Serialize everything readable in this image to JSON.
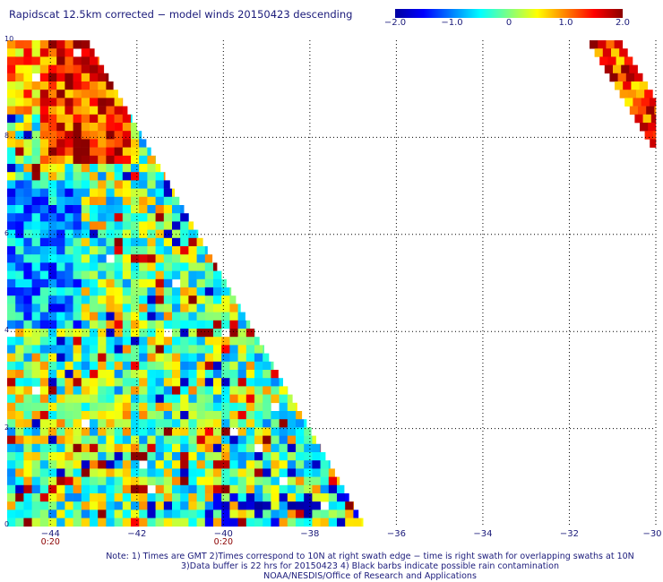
{
  "title": "Rapidscat 12.5km corrected − model winds 20150423 descending",
  "colorbar": {
    "labels": [
      "−2.0",
      "−1.0",
      "0",
      "1.0",
      "2.0"
    ],
    "label_values": [
      -2.0,
      -1.0,
      0,
      1.0,
      2.0
    ],
    "range": [
      -2.0,
      2.0
    ],
    "colors": [
      "#0000a0",
      "#0000ff",
      "#0080ff",
      "#00ffff",
      "#80ff80",
      "#ffff00",
      "#ff8000",
      "#ff0000",
      "#8b0000"
    ]
  },
  "axes": {
    "lon_labels": [
      "−44",
      "−42",
      "−40",
      "−38",
      "−36",
      "−34",
      "−32",
      "−30"
    ],
    "lon_values": [
      -44,
      -42,
      -40,
      -38,
      -36,
      -34,
      -32,
      -30
    ],
    "lat_labels": [
      "10",
      "8",
      "6",
      "4",
      "2",
      "0"
    ],
    "lat_values": [
      10,
      8,
      6,
      4,
      2,
      0
    ],
    "lon_range": [
      -45,
      -30
    ],
    "lat_range": [
      0,
      10
    ],
    "grid": true
  },
  "time_labels": [
    {
      "text": "0:20",
      "lon": -44
    },
    {
      "text": "0:20",
      "lon": -40
    }
  ],
  "notes": {
    "line1": "Note: 1) Times are GMT 2)Times correspond to 10N at right swath edge − time is right swath for overlapping swaths at 10N",
    "line2": "3)Data buffer is 22 hrs for 20150423 4) Black barbs indicate possible rain contamination",
    "line3": "NOAA/NESDIS/Office of Research and Applications"
  }
}
